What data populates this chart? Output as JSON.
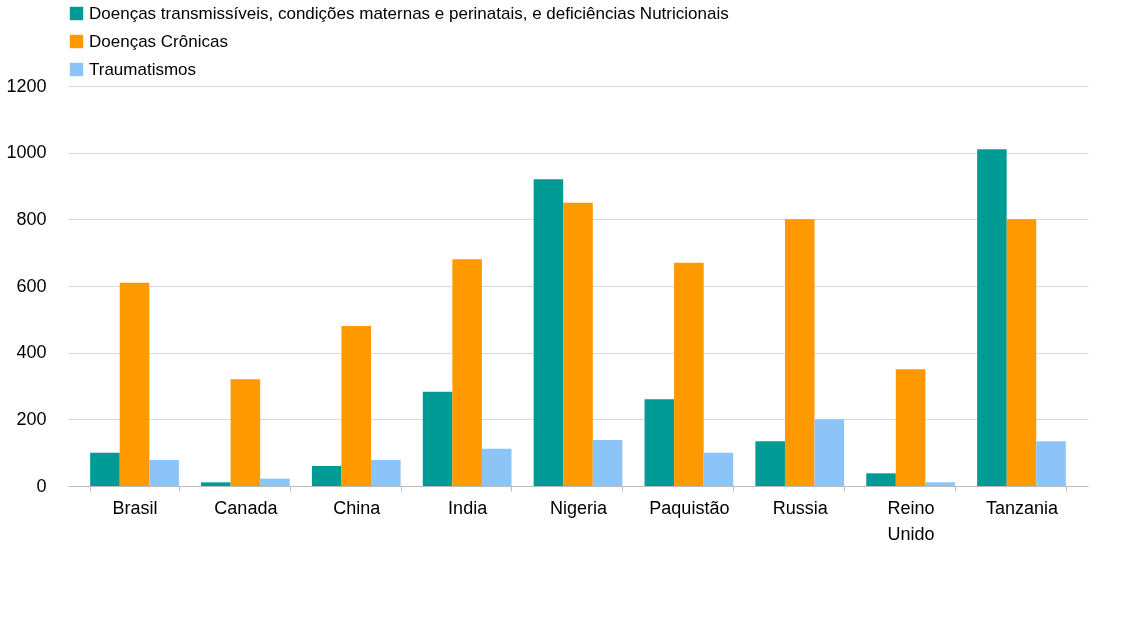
{
  "chart_data": {
    "type": "bar",
    "categories": [
      "Brasil",
      "Canada",
      "China",
      "India",
      "Nigeria",
      "Paquistão",
      "Russia",
      "Reino Unido",
      "Tanzania"
    ],
    "series": [
      {
        "name": "Doenças transmissíveis, condições maternas e perinatais, e deficiências Nutricionais",
        "color": "#009b95",
        "values": [
          100,
          11,
          60,
          283,
          920,
          260,
          134,
          38,
          1010
        ]
      },
      {
        "name": "Doenças Crônicas",
        "color": "#ff9900",
        "values": [
          610,
          320,
          480,
          680,
          850,
          670,
          800,
          350,
          800
        ]
      },
      {
        "name": "Traumatismos",
        "color": "#8cc4f8",
        "values": [
          78,
          22,
          78,
          112,
          138,
          100,
          200,
          11,
          134
        ]
      }
    ],
    "ylim": [
      0,
      1200
    ],
    "yticks": [
      0,
      200,
      400,
      600,
      800,
      1000,
      1200
    ],
    "grid": "y",
    "legend": "top left"
  }
}
